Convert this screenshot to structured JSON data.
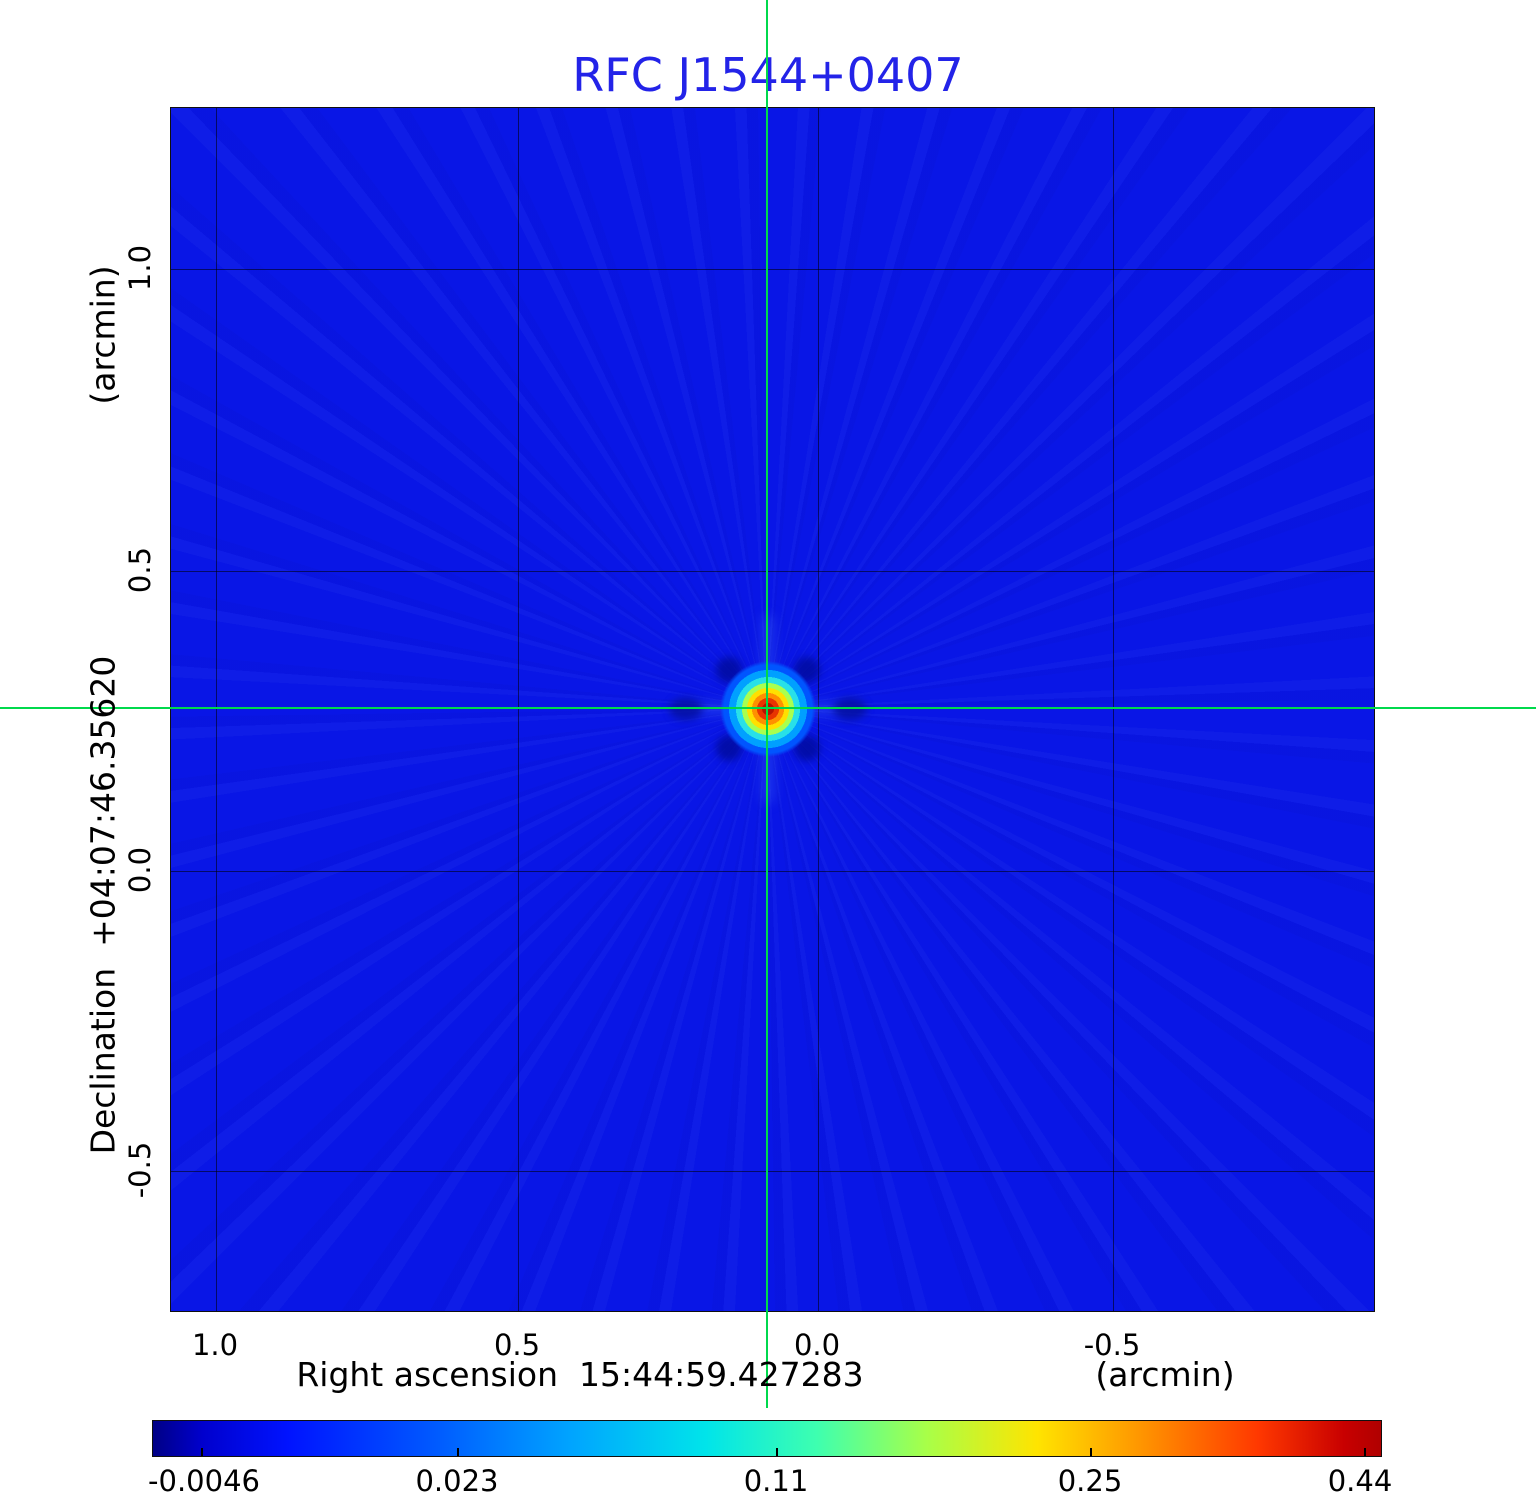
{
  "title": {
    "text": "RFC J1544+0407"
  },
  "axes": {
    "x_ticks": [
      "1.0",
      "0.5",
      "0.0",
      "-0.5"
    ],
    "y_ticks": [
      "1.0",
      "0.5",
      "0.0",
      "-0.5"
    ],
    "x_label": "Right ascension  15:44:59.427283",
    "x_unit": "(arcmin)",
    "y_label": "Declination  +04:07:46.35620",
    "y_unit": "(arcmin)"
  },
  "colorbar": {
    "ticks": [
      "-0.0046",
      "0.023",
      "0.11",
      "0.25",
      "0.44"
    ]
  },
  "colors": {
    "title": "#2323e8",
    "field_background": "#0916e6",
    "crosshair": "#00d94c",
    "grid": "#000000",
    "colormap": "jet"
  },
  "chart_data": {
    "type": "heatmap",
    "title": "RFC J1544+0407",
    "xlabel": "Right ascension 15:44:59.427283 (arcmin)",
    "ylabel": "Declination +04:07:46.35620 (arcmin)",
    "x_range_arcmin": [
      1.08,
      -0.93
    ],
    "y_range_arcmin": [
      -0.73,
      1.27
    ],
    "x_tick_values": [
      1.0,
      0.5,
      0.0,
      -0.5
    ],
    "y_tick_values": [
      1.0,
      0.5,
      0.0,
      -0.5
    ],
    "grid": true,
    "colormap": "jet",
    "color_scale": "nonlinear",
    "colorbar_tick_values": [
      -0.0046,
      0.023,
      0.11,
      0.25,
      0.44
    ],
    "value_min": -0.0046,
    "value_max": 0.44,
    "peak": {
      "x_arcmin": 0.08,
      "y_arcmin": 0.27,
      "value": 0.44
    },
    "crosshair_position": {
      "x_arcmin": 0.08,
      "y_arcmin": 0.27
    },
    "description": "VLBI image of compact radio source: single bright point source at the crosshair position (red core, yellow-green-cyan rings) on a uniform blue background with faint radial sidelobe streaks and dark-blue sidelobe spots around the core."
  }
}
